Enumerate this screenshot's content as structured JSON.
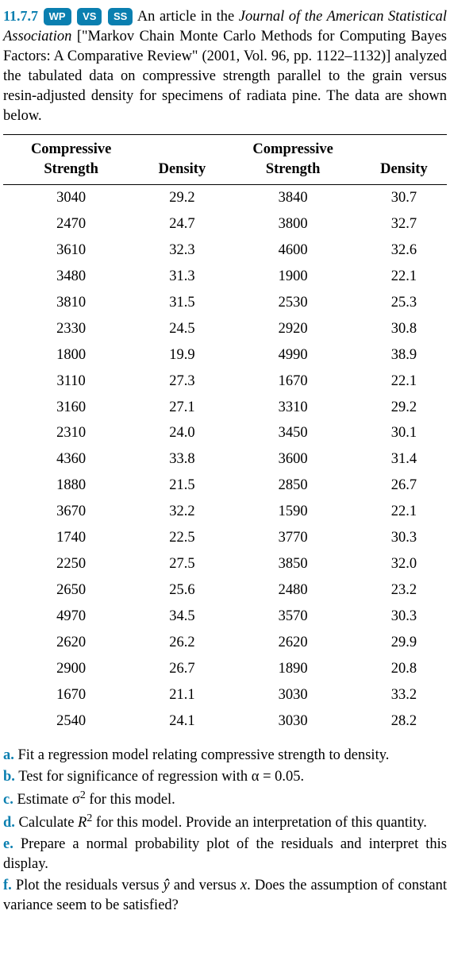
{
  "header": {
    "problem_number": "11.7.7",
    "badges": {
      "wp": "WP",
      "vs": "VS",
      "ss": "SS"
    },
    "text_prefix": " An article in the ",
    "journal": "Journal of the American Statistical Association",
    "text_mid1": " [\"Markov Chain Monte Carlo Methods for Computing Bayes Factors: A Comparative Review\" (2001, Vol. 96, pp. 1122–1132)] analyzed the tabulated data on compressive strength parallel to the grain versus resin-adjusted density for specimens of radiata pine. The data are shown below."
  },
  "table": {
    "headers": {
      "cs_line1": "Compressive",
      "cs_line2": "Strength",
      "density": "Density"
    },
    "rows": [
      {
        "cs1": "3040",
        "d1": "29.2",
        "cs2": "3840",
        "d2": "30.7"
      },
      {
        "cs1": "2470",
        "d1": "24.7",
        "cs2": "3800",
        "d2": "32.7"
      },
      {
        "cs1": "3610",
        "d1": "32.3",
        "cs2": "4600",
        "d2": "32.6"
      },
      {
        "cs1": "3480",
        "d1": "31.3",
        "cs2": "1900",
        "d2": "22.1"
      },
      {
        "cs1": "3810",
        "d1": "31.5",
        "cs2": "2530",
        "d2": "25.3"
      },
      {
        "cs1": "2330",
        "d1": "24.5",
        "cs2": "2920",
        "d2": "30.8"
      },
      {
        "cs1": "1800",
        "d1": "19.9",
        "cs2": "4990",
        "d2": "38.9"
      },
      {
        "cs1": "3110",
        "d1": "27.3",
        "cs2": "1670",
        "d2": "22.1"
      },
      {
        "cs1": "3160",
        "d1": "27.1",
        "cs2": "3310",
        "d2": "29.2"
      },
      {
        "cs1": "2310",
        "d1": "24.0",
        "cs2": "3450",
        "d2": "30.1"
      },
      {
        "cs1": "4360",
        "d1": "33.8",
        "cs2": "3600",
        "d2": "31.4"
      },
      {
        "cs1": "1880",
        "d1": "21.5",
        "cs2": "2850",
        "d2": "26.7"
      },
      {
        "cs1": "3670",
        "d1": "32.2",
        "cs2": "1590",
        "d2": "22.1"
      },
      {
        "cs1": "1740",
        "d1": "22.5",
        "cs2": "3770",
        "d2": "30.3"
      },
      {
        "cs1": "2250",
        "d1": "27.5",
        "cs2": "3850",
        "d2": "32.0"
      },
      {
        "cs1": "2650",
        "d1": "25.6",
        "cs2": "2480",
        "d2": "23.2"
      },
      {
        "cs1": "4970",
        "d1": "34.5",
        "cs2": "3570",
        "d2": "30.3"
      },
      {
        "cs1": "2620",
        "d1": "26.2",
        "cs2": "2620",
        "d2": "29.9"
      },
      {
        "cs1": "2900",
        "d1": "26.7",
        "cs2": "1890",
        "d2": "20.8"
      },
      {
        "cs1": "1670",
        "d1": "21.1",
        "cs2": "3030",
        "d2": "33.2"
      },
      {
        "cs1": "2540",
        "d1": "24.1",
        "cs2": "3030",
        "d2": "28.2"
      }
    ]
  },
  "questions": {
    "a_label": "a.",
    "a_text": "  Fit a regression model relating compressive strength to density.",
    "b_label": "b.",
    "b_text": "  Test for significance of regression with α = 0.05.",
    "c_label": "c.",
    "c_pre": "  Estimate σ",
    "c_post": " for this model.",
    "d_label": "d.",
    "d_pre": "  Calculate ",
    "d_ital": "R",
    "d_post": " for this model. Provide an interpretation of this quantity.",
    "e_label": "e.",
    "e_text": "  Prepare a normal probability plot of the residuals and interpret this display.",
    "f_label": "f.",
    "f_pre": "  Plot the residuals versus ",
    "f_yhat": "ŷ",
    "f_mid": " and versus ",
    "f_x": "x",
    "f_post": ". Does the assumption of constant variance seem to be satisfied?"
  }
}
